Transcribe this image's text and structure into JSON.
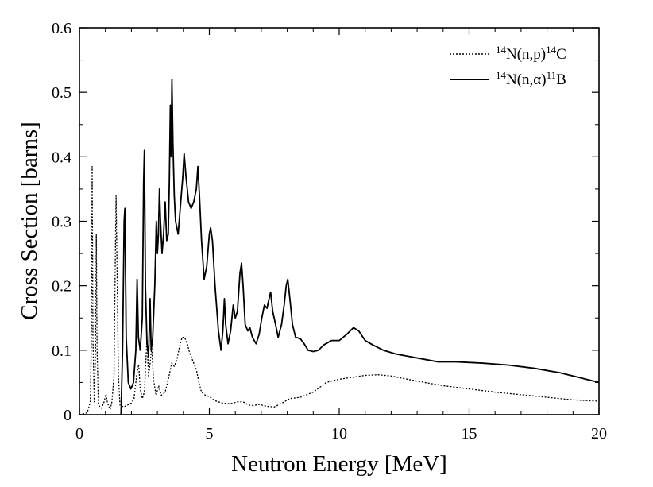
{
  "chart_data": {
    "type": "line",
    "xlabel": "Neutron Energy [MeV]",
    "ylabel": "Cross Section [barns]",
    "xlim": [
      0,
      20
    ],
    "ylim": [
      0,
      0.6
    ],
    "x_ticks": [
      "0",
      "5",
      "10",
      "15",
      "20"
    ],
    "y_ticks": [
      "0",
      "0.1",
      "0.2",
      "0.3",
      "0.4",
      "0.5",
      "0.6"
    ],
    "grid": false,
    "legend_position": "top-right",
    "series": [
      {
        "name": "14N(n,p)14C",
        "legend": {
          "pre": "14",
          "mid": "N(n,p)",
          "sup": "14",
          "post": "C"
        },
        "style": "dotted",
        "color": "#000000",
        "points": [
          [
            0.0,
            0.0
          ],
          [
            0.3,
            0.003
          ],
          [
            0.42,
            0.02
          ],
          [
            0.46,
            0.12
          ],
          [
            0.49,
            0.385
          ],
          [
            0.52,
            0.12
          ],
          [
            0.57,
            0.02
          ],
          [
            0.62,
            0.1
          ],
          [
            0.65,
            0.28
          ],
          [
            0.68,
            0.1
          ],
          [
            0.73,
            0.015
          ],
          [
            0.85,
            0.01
          ],
          [
            0.95,
            0.02
          ],
          [
            1.02,
            0.032
          ],
          [
            1.08,
            0.018
          ],
          [
            1.18,
            0.008
          ],
          [
            1.25,
            0.02
          ],
          [
            1.33,
            0.06
          ],
          [
            1.38,
            0.24
          ],
          [
            1.41,
            0.34
          ],
          [
            1.45,
            0.22
          ],
          [
            1.5,
            0.06
          ],
          [
            1.56,
            0.015
          ],
          [
            1.7,
            0.012
          ],
          [
            1.85,
            0.015
          ],
          [
            2.0,
            0.018
          ],
          [
            2.1,
            0.025
          ],
          [
            2.2,
            0.06
          ],
          [
            2.28,
            0.078
          ],
          [
            2.34,
            0.04
          ],
          [
            2.42,
            0.025
          ],
          [
            2.5,
            0.035
          ],
          [
            2.56,
            0.085
          ],
          [
            2.6,
            0.12
          ],
          [
            2.66,
            0.06
          ],
          [
            2.72,
            0.08
          ],
          [
            2.78,
            0.105
          ],
          [
            2.85,
            0.055
          ],
          [
            2.95,
            0.03
          ],
          [
            3.05,
            0.045
          ],
          [
            3.15,
            0.03
          ],
          [
            3.3,
            0.035
          ],
          [
            3.45,
            0.06
          ],
          [
            3.55,
            0.08
          ],
          [
            3.65,
            0.075
          ],
          [
            3.75,
            0.085
          ],
          [
            3.85,
            0.105
          ],
          [
            3.95,
            0.12
          ],
          [
            4.05,
            0.12
          ],
          [
            4.15,
            0.11
          ],
          [
            4.25,
            0.095
          ],
          [
            4.4,
            0.08
          ],
          [
            4.5,
            0.07
          ],
          [
            4.6,
            0.05
          ],
          [
            4.7,
            0.035
          ],
          [
            4.85,
            0.03
          ],
          [
            5.0,
            0.028
          ],
          [
            5.2,
            0.022
          ],
          [
            5.5,
            0.018
          ],
          [
            5.8,
            0.017
          ],
          [
            6.1,
            0.02
          ],
          [
            6.3,
            0.02
          ],
          [
            6.5,
            0.015
          ],
          [
            6.7,
            0.014
          ],
          [
            6.9,
            0.016
          ],
          [
            7.2,
            0.013
          ],
          [
            7.5,
            0.012
          ],
          [
            7.8,
            0.018
          ],
          [
            8.1,
            0.025
          ],
          [
            8.5,
            0.027
          ],
          [
            9.0,
            0.035
          ],
          [
            9.5,
            0.05
          ],
          [
            10.0,
            0.055
          ],
          [
            10.5,
            0.058
          ],
          [
            11.0,
            0.061
          ],
          [
            11.5,
            0.062
          ],
          [
            12.0,
            0.06
          ],
          [
            12.5,
            0.056
          ],
          [
            13.0,
            0.052
          ],
          [
            14.0,
            0.045
          ],
          [
            15.0,
            0.04
          ],
          [
            16.0,
            0.035
          ],
          [
            17.0,
            0.031
          ],
          [
            18.0,
            0.027
          ],
          [
            19.0,
            0.023
          ],
          [
            20.0,
            0.021
          ]
        ]
      },
      {
        "name": "14N(n,α)11B",
        "legend": {
          "pre": "14",
          "mid": "N(n,α)",
          "sup": "11",
          "post": "B"
        },
        "style": "solid",
        "color": "#000000",
        "points": [
          [
            1.6,
            0.0
          ],
          [
            1.66,
            0.1
          ],
          [
            1.72,
            0.3
          ],
          [
            1.75,
            0.32
          ],
          [
            1.8,
            0.12
          ],
          [
            1.88,
            0.05
          ],
          [
            1.98,
            0.04
          ],
          [
            2.08,
            0.05
          ],
          [
            2.17,
            0.1
          ],
          [
            2.22,
            0.21
          ],
          [
            2.27,
            0.12
          ],
          [
            2.34,
            0.1
          ],
          [
            2.42,
            0.15
          ],
          [
            2.47,
            0.36
          ],
          [
            2.5,
            0.41
          ],
          [
            2.54,
            0.2
          ],
          [
            2.6,
            0.11
          ],
          [
            2.66,
            0.09
          ],
          [
            2.72,
            0.18
          ],
          [
            2.76,
            0.1
          ],
          [
            2.82,
            0.12
          ],
          [
            2.9,
            0.2
          ],
          [
            2.96,
            0.3
          ],
          [
            3.0,
            0.25
          ],
          [
            3.04,
            0.28
          ],
          [
            3.08,
            0.35
          ],
          [
            3.12,
            0.3
          ],
          [
            3.18,
            0.25
          ],
          [
            3.24,
            0.28
          ],
          [
            3.3,
            0.33
          ],
          [
            3.36,
            0.27
          ],
          [
            3.42,
            0.28
          ],
          [
            3.46,
            0.36
          ],
          [
            3.5,
            0.48
          ],
          [
            3.53,
            0.4
          ],
          [
            3.56,
            0.52
          ],
          [
            3.6,
            0.42
          ],
          [
            3.65,
            0.34
          ],
          [
            3.7,
            0.3
          ],
          [
            3.8,
            0.28
          ],
          [
            3.9,
            0.33
          ],
          [
            3.98,
            0.37
          ],
          [
            4.03,
            0.405
          ],
          [
            4.1,
            0.37
          ],
          [
            4.2,
            0.33
          ],
          [
            4.3,
            0.32
          ],
          [
            4.4,
            0.33
          ],
          [
            4.5,
            0.35
          ],
          [
            4.56,
            0.385
          ],
          [
            4.62,
            0.34
          ],
          [
            4.7,
            0.27
          ],
          [
            4.8,
            0.21
          ],
          [
            4.9,
            0.23
          ],
          [
            5.0,
            0.28
          ],
          [
            5.05,
            0.29
          ],
          [
            5.12,
            0.27
          ],
          [
            5.22,
            0.2
          ],
          [
            5.35,
            0.13
          ],
          [
            5.45,
            0.1
          ],
          [
            5.52,
            0.13
          ],
          [
            5.58,
            0.18
          ],
          [
            5.63,
            0.14
          ],
          [
            5.72,
            0.11
          ],
          [
            5.82,
            0.13
          ],
          [
            5.92,
            0.17
          ],
          [
            6.0,
            0.15
          ],
          [
            6.08,
            0.16
          ],
          [
            6.18,
            0.22
          ],
          [
            6.24,
            0.235
          ],
          [
            6.3,
            0.2
          ],
          [
            6.38,
            0.14
          ],
          [
            6.48,
            0.13
          ],
          [
            6.56,
            0.135
          ],
          [
            6.66,
            0.12
          ],
          [
            6.8,
            0.11
          ],
          [
            6.92,
            0.125
          ],
          [
            7.02,
            0.15
          ],
          [
            7.12,
            0.17
          ],
          [
            7.22,
            0.165
          ],
          [
            7.3,
            0.18
          ],
          [
            7.36,
            0.19
          ],
          [
            7.44,
            0.16
          ],
          [
            7.55,
            0.14
          ],
          [
            7.65,
            0.12
          ],
          [
            7.78,
            0.14
          ],
          [
            7.88,
            0.17
          ],
          [
            7.96,
            0.2
          ],
          [
            8.02,
            0.21
          ],
          [
            8.1,
            0.18
          ],
          [
            8.2,
            0.14
          ],
          [
            8.32,
            0.12
          ],
          [
            8.5,
            0.118
          ],
          [
            8.65,
            0.11
          ],
          [
            8.8,
            0.1
          ],
          [
            9.0,
            0.098
          ],
          [
            9.2,
            0.1
          ],
          [
            9.4,
            0.108
          ],
          [
            9.7,
            0.115
          ],
          [
            10.0,
            0.115
          ],
          [
            10.3,
            0.125
          ],
          [
            10.55,
            0.135
          ],
          [
            10.75,
            0.13
          ],
          [
            11.0,
            0.115
          ],
          [
            11.3,
            0.108
          ],
          [
            11.7,
            0.1
          ],
          [
            12.2,
            0.094
          ],
          [
            13.0,
            0.088
          ],
          [
            13.8,
            0.082
          ],
          [
            14.5,
            0.082
          ],
          [
            15.5,
            0.08
          ],
          [
            16.5,
            0.077
          ],
          [
            17.5,
            0.072
          ],
          [
            18.5,
            0.065
          ],
          [
            19.2,
            0.058
          ],
          [
            20.0,
            0.05
          ]
        ]
      }
    ]
  }
}
